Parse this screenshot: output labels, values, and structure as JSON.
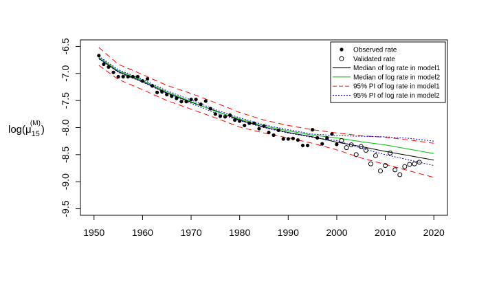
{
  "chart_data": {
    "type": "line",
    "ylabel": {
      "prefix": "log(",
      "symbol": "μ",
      "subscript": "15",
      "superscript": "(M)",
      "suffix": ")"
    },
    "xlim": [
      1950,
      2020
    ],
    "ylim": [
      -9.5,
      -6.5
    ],
    "x_ticks": [
      1950,
      1960,
      1970,
      1980,
      1990,
      2000,
      2010,
      2020
    ],
    "y_ticks": [
      -9.5,
      -9.0,
      -8.5,
      -8.0,
      -7.5,
      -7.0,
      -6.5
    ],
    "y_tick_labels": [
      "-9.5",
      "-9.0",
      "-8.5",
      "-8.0",
      "-7.5",
      "-7.0",
      "-6.5"
    ],
    "grid": false,
    "legend": {
      "placement": "top-right",
      "entries": [
        {
          "label": "Observed rate",
          "style": "filled-point",
          "color": "#000000"
        },
        {
          "label": "Validated rate",
          "style": "open-point",
          "color": "#000000"
        },
        {
          "label": "Median of log rate in model1",
          "style": "solid",
          "color": "#000000"
        },
        {
          "label": "Median of log rate in model2",
          "style": "solid",
          "color": "#00bb00"
        },
        {
          "label": "95% PI of log rate in model1",
          "style": "dashed",
          "color": "#ff0000"
        },
        {
          "label": "95% PI of log rate in model2",
          "style": "dotted",
          "color": "#0000cc"
        }
      ]
    },
    "observed": {
      "x": [
        1951,
        1952,
        1953,
        1954,
        1955,
        1956,
        1957,
        1958,
        1959,
        1960,
        1961,
        1962,
        1963,
        1964,
        1965,
        1966,
        1967,
        1968,
        1969,
        1970,
        1971,
        1972,
        1973,
        1974,
        1975,
        1976,
        1977,
        1978,
        1979,
        1980,
        1981,
        1982,
        1983,
        1984,
        1985,
        1986,
        1987,
        1988,
        1989,
        1990,
        1991,
        1992,
        1993,
        1994,
        1995,
        1996,
        1997,
        1998,
        1999,
        2000
      ],
      "y": [
        -6.67,
        -6.83,
        -6.88,
        -6.98,
        -7.06,
        -7.06,
        -7.06,
        -7.06,
        -7.06,
        -7.14,
        -7.1,
        -7.23,
        -7.35,
        -7.34,
        -7.39,
        -7.42,
        -7.46,
        -7.52,
        -7.52,
        -7.48,
        -7.48,
        -7.57,
        -7.51,
        -7.65,
        -7.75,
        -7.79,
        -7.8,
        -7.77,
        -7.86,
        -7.88,
        -7.96,
        -7.92,
        -7.92,
        -8.02,
        -7.97,
        -8.09,
        -8.14,
        -8.05,
        -8.21,
        -8.21,
        -8.2,
        -8.23,
        -8.33,
        -8.33,
        -8.04,
        -8.19,
        -8.3,
        -8.19,
        -8.12,
        -8.31
      ]
    },
    "validated": {
      "x": [
        2001,
        2002,
        2003,
        2004,
        2005,
        2006,
        2007,
        2008,
        2009,
        2010,
        2011,
        2012,
        2013,
        2014,
        2015,
        2016,
        2017
      ],
      "y": [
        -8.24,
        -8.37,
        -8.32,
        -8.5,
        -8.35,
        -8.42,
        -8.67,
        -8.52,
        -8.8,
        -8.7,
        -8.47,
        -8.78,
        -8.87,
        -8.72,
        -8.68,
        -8.67,
        -8.64
      ]
    },
    "series": [
      {
        "key": "median_model1",
        "x": [
          1951,
          1955,
          1960,
          1965,
          1970,
          1975,
          1980,
          1985,
          1990,
          1995,
          2000,
          2005,
          2010,
          2015,
          2020
        ],
        "y": [
          -6.72,
          -6.97,
          -7.15,
          -7.36,
          -7.53,
          -7.69,
          -7.86,
          -7.99,
          -8.09,
          -8.17,
          -8.27,
          -8.35,
          -8.44,
          -8.52,
          -8.6
        ]
      },
      {
        "key": "median_model2",
        "x": [
          1951,
          1955,
          1960,
          1965,
          1970,
          1975,
          1980,
          1985,
          1990,
          1995,
          2000,
          2005,
          2010,
          2015,
          2020
        ],
        "y": [
          -6.7,
          -6.95,
          -7.13,
          -7.34,
          -7.52,
          -7.7,
          -7.84,
          -7.97,
          -8.06,
          -8.14,
          -8.19,
          -8.26,
          -8.32,
          -8.4,
          -8.48
        ]
      },
      {
        "key": "pi_upper_model1",
        "x": [
          1951,
          1955,
          1960,
          1965,
          1970,
          1975,
          1980,
          1985,
          1990,
          1995,
          2000,
          2005,
          2010,
          2015,
          2020
        ],
        "y": [
          -6.52,
          -6.83,
          -7.02,
          -7.22,
          -7.37,
          -7.54,
          -7.72,
          -7.86,
          -7.96,
          -8.04,
          -8.1,
          -8.15,
          -8.18,
          -8.23,
          -8.29
        ]
      },
      {
        "key": "pi_lower_model1",
        "x": [
          1951,
          1955,
          1960,
          1965,
          1970,
          1975,
          1980,
          1985,
          1990,
          1995,
          2000,
          2005,
          2010,
          2015,
          2020
        ],
        "y": [
          -6.85,
          -7.11,
          -7.3,
          -7.5,
          -7.66,
          -7.82,
          -7.99,
          -8.1,
          -8.19,
          -8.29,
          -8.41,
          -8.56,
          -8.68,
          -8.8,
          -8.92
        ]
      },
      {
        "key": "pi_upper_model2",
        "x": [
          1951,
          1955,
          1960,
          1965,
          1970,
          1975,
          1980,
          1985,
          1990,
          1995,
          2000,
          2005,
          2010,
          2015,
          2020
        ],
        "y": [
          -6.68,
          -6.93,
          -7.11,
          -7.32,
          -7.49,
          -7.67,
          -7.82,
          -7.95,
          -8.04,
          -8.12,
          -8.15,
          -8.16,
          -8.17,
          -8.2,
          -8.25
        ]
      },
      {
        "key": "pi_lower_model2",
        "x": [
          1951,
          1955,
          1960,
          1965,
          1970,
          1975,
          1980,
          1985,
          1990,
          1995,
          2000,
          2005,
          2010,
          2015,
          2020
        ],
        "y": [
          -6.73,
          -6.98,
          -7.16,
          -7.37,
          -7.55,
          -7.73,
          -7.87,
          -8.0,
          -8.1,
          -8.18,
          -8.24,
          -8.38,
          -8.5,
          -8.6,
          -8.7
        ]
      }
    ],
    "series_styles": {
      "median_model1": {
        "color": "#000000",
        "dash": ""
      },
      "median_model2": {
        "color": "#00bb00",
        "dash": ""
      },
      "pi_upper_model1": {
        "color": "#ff0000",
        "dash": "8,5"
      },
      "pi_lower_model1": {
        "color": "#ff0000",
        "dash": "8,5"
      },
      "pi_upper_model2": {
        "color": "#0000cc",
        "dash": "2,2"
      },
      "pi_lower_model2": {
        "color": "#0000cc",
        "dash": "2,2"
      }
    }
  }
}
